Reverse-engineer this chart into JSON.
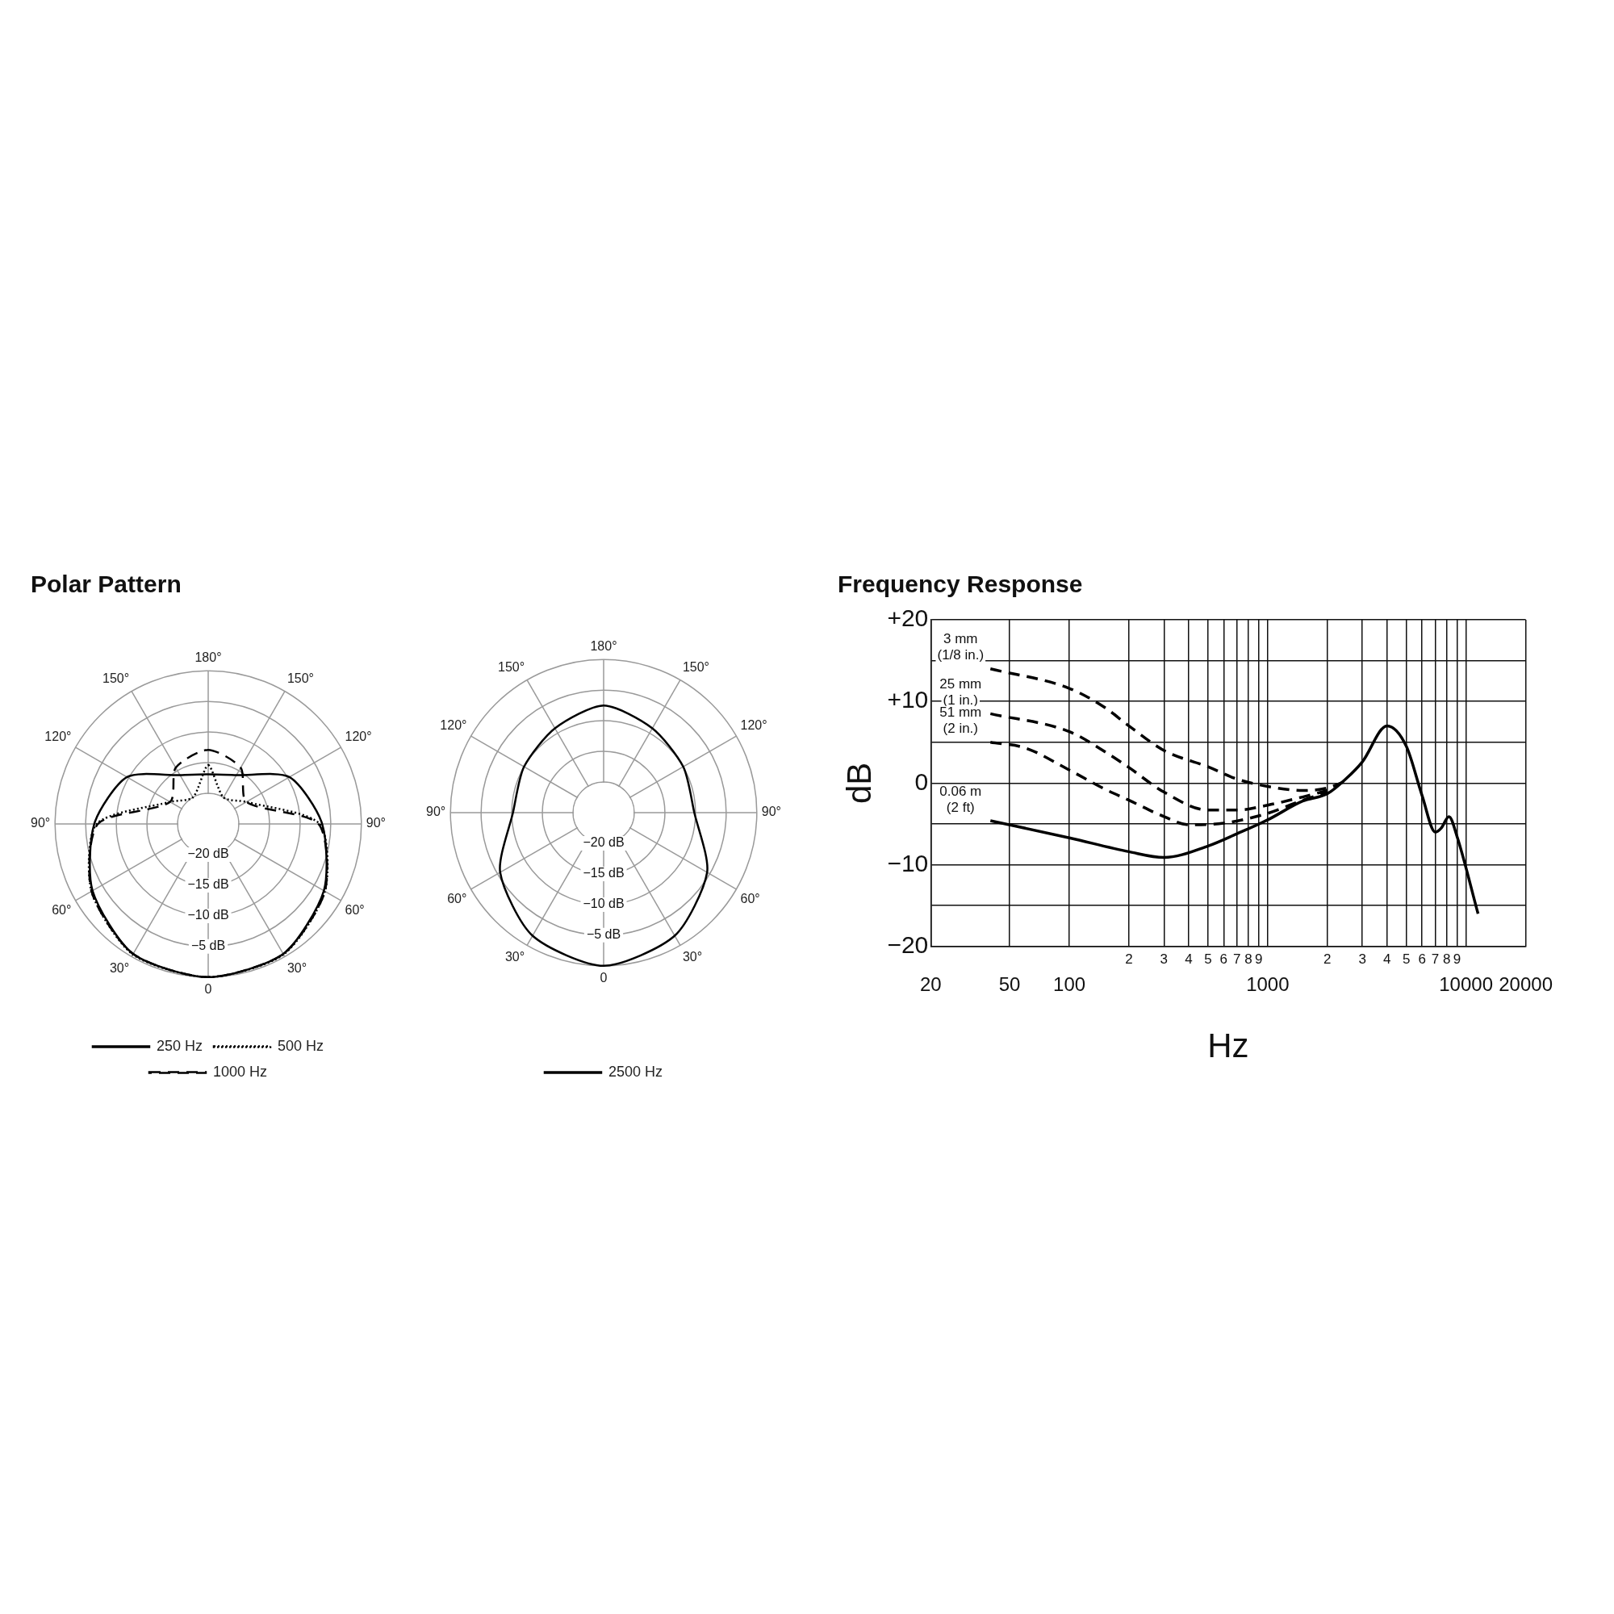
{
  "chart_data": [
    {
      "type": "radar",
      "title": "Polar Pattern",
      "categories": [
        "180°",
        "150°",
        "120°",
        "90°",
        "60°",
        "30°",
        "0",
        "30°",
        "60°",
        "90°",
        "120°",
        "150°"
      ],
      "ylim": [
        -25,
        0
      ],
      "yticks": [
        {
          "value": -20,
          "label": "−20 dB"
        },
        {
          "value": -15,
          "label": "−15 dB"
        },
        {
          "value": -10,
          "label": "−10 dB"
        },
        {
          "value": -5,
          "label": "−5 dB"
        }
      ],
      "grid": true,
      "legend": "bottom",
      "series": [
        {
          "name": "250 Hz",
          "color": "#000000",
          "line_style": "solid",
          "values": [
            -16.9,
            -15.8,
            -9.7,
            -6.4,
            -3.2,
            -0.5,
            0,
            -0.5,
            -3.2,
            -6.4,
            -9.7,
            -15.8
          ]
        },
        {
          "name": "500 Hz",
          "color": "#000000",
          "line_style": "dotted",
          "values": [
            -15.4,
            -20,
            -17.8,
            -6.8,
            -3,
            -0.4,
            0,
            -0.4,
            -3,
            -6.8,
            -17.8,
            -20
          ]
        },
        {
          "name": "1000 Hz",
          "color": "#000000",
          "line_style": "dashed",
          "values": [
            -12.9,
            -14.4,
            -17.8,
            -7,
            -3,
            -0.5,
            0,
            -0.5,
            -3,
            -7,
            -17.8,
            -14.4
          ]
        }
      ]
    },
    {
      "type": "radar",
      "categories": [
        "180°",
        "150°",
        "120°",
        "90°",
        "60°",
        "30°",
        "0",
        "30°",
        "60°",
        "90°",
        "120°",
        "150°"
      ],
      "ylim": [
        -25,
        0
      ],
      "yticks": [
        {
          "value": -20,
          "label": "−20 dB"
        },
        {
          "value": -15,
          "label": "−15 dB"
        },
        {
          "value": -10,
          "label": "−10 dB"
        },
        {
          "value": -5,
          "label": "−5 dB"
        }
      ],
      "grid": true,
      "legend": "bottom",
      "series": [
        {
          "name": "2500 Hz",
          "color": "#000000",
          "line_style": "solid",
          "values": [
            -7.5,
            -9.1,
            -10,
            -10.2,
            -5.5,
            -1.8,
            0,
            -1.8,
            -5.5,
            -10.2,
            -10,
            -9.1
          ]
        }
      ]
    },
    {
      "type": "line",
      "title": "Frequency Response",
      "xlabel": "Hz",
      "ylabel": "dB",
      "log": "x",
      "xlim": [
        20,
        20000
      ],
      "xticks": [
        20,
        50,
        100,
        {
          "value": 200,
          "label": null
        },
        {
          "value": 300,
          "label": null
        },
        {
          "value": 400,
          "label": null
        },
        {
          "value": 500,
          "label": null
        },
        {
          "value": 600,
          "label": null
        },
        {
          "value": 700,
          "label": null
        },
        {
          "value": 800,
          "label": null
        },
        {
          "value": 900,
          "label": null
        },
        1000,
        {
          "value": 2000,
          "label": null
        },
        {
          "value": 3000,
          "label": null
        },
        {
          "value": 4000,
          "label": null
        },
        {
          "value": 5000,
          "label": null
        },
        {
          "value": 6000,
          "label": null
        },
        {
          "value": 7000,
          "label": null
        },
        {
          "value": 8000,
          "label": null
        },
        {
          "value": 9000,
          "label": null
        },
        10000,
        20000
      ],
      "annotations": [
        "2",
        "3",
        "4",
        "5",
        "6",
        "7",
        "8",
        "9",
        "2",
        "3",
        "4",
        "5",
        "6",
        "7",
        "8",
        "9"
      ],
      "ylim": [
        -20,
        20
      ],
      "yticks": [
        {
          "value": -20,
          "label": "−20"
        },
        {
          "value": -15,
          "label": null
        },
        {
          "value": -10,
          "label": "−10"
        },
        {
          "value": -5,
          "label": null
        },
        0,
        {
          "value": 5,
          "label": null
        },
        {
          "value": 10,
          "label": "+10"
        },
        {
          "value": 15,
          "label": null
        },
        {
          "value": 20,
          "label": "+20"
        }
      ],
      "grid": true,
      "series": [
        {
          "name": "3 mm (1/8 in.)",
          "color": "#000000",
          "line_style": "dashed",
          "x": [
            40,
            100,
            150,
            200,
            300,
            500,
            700,
            1000,
            1500,
            2000,
            2500
          ],
          "values": [
            14,
            11.6,
            9.3,
            7,
            4,
            2,
            0.5,
            -0.4,
            -0.9,
            -0.6,
            0.3
          ]
        },
        {
          "name": "25 mm (1 in.)",
          "color": "#000000",
          "line_style": "dashed",
          "x": [
            40,
            100,
            150,
            200,
            300,
            500,
            700,
            1000,
            1500,
            2000
          ],
          "values": [
            8.5,
            6.3,
            3.9,
            1.9,
            -1.1,
            -3.3,
            -3.3,
            -2.7,
            -1.7,
            -0.9
          ]
        },
        {
          "name": "51 mm (2 in.)",
          "color": "#000000",
          "line_style": "dashed",
          "x": [
            40,
            60,
            100,
            150,
            200,
            300,
            400,
            600,
            1000,
            1500,
            2000
          ],
          "values": [
            5,
            4.3,
            1.6,
            -0.7,
            -2.1,
            -4.1,
            -5.1,
            -4.9,
            -3.7,
            -2.1,
            -1.1
          ]
        },
        {
          "name": "0.06 m (2 ft)",
          "color": "#000000",
          "line_style": "solid",
          "x": [
            40,
            100,
            200,
            300,
            500,
            700,
            1000,
            1500,
            2000,
            2500,
            3000,
            4000,
            5000,
            6000,
            7000,
            7500,
            8200,
            9000,
            11500
          ],
          "values": [
            -4.6,
            -6.7,
            -8.4,
            -9.1,
            -7.7,
            -6.2,
            -4.5,
            -2.2,
            -1.3,
            0.6,
            2.6,
            7,
            4.5,
            -1.5,
            -6,
            -5.5,
            -4.1,
            -6.5,
            -16
          ]
        }
      ]
    }
  ]
}
